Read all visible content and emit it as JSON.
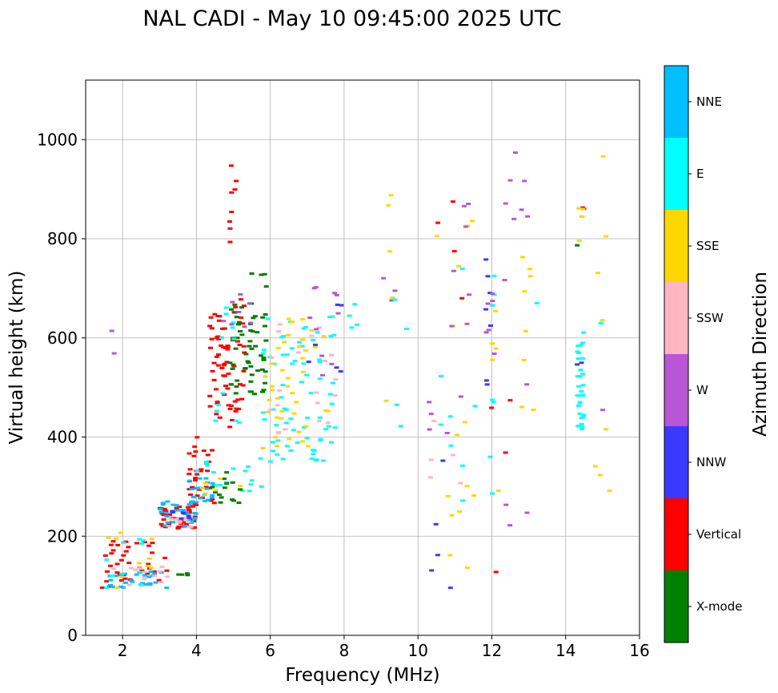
{
  "chart_data": {
    "type": "scatter",
    "title": "NAL CADI - May 10 09:45:00 2025 UTC",
    "xlabel": "Frequency (MHz)",
    "ylabel": "Virtual height (km)",
    "xlim": [
      1,
      16
    ],
    "ylim": [
      0,
      1120
    ],
    "xticks": [
      2,
      4,
      6,
      8,
      10,
      12,
      14,
      16
    ],
    "yticks": [
      0,
      200,
      400,
      600,
      800,
      1000
    ],
    "grid": true,
    "colorbar": {
      "label": "Azimuth Direction",
      "categories": [
        "X-mode",
        "Vertical",
        "NNW",
        "W",
        "SSW",
        "SSE",
        "E",
        "NNE"
      ],
      "colors": [
        "#008000",
        "#ff0000",
        "#3a3aff",
        "#b856d6",
        "#ffb6c1",
        "#ffd700",
        "#00ffff",
        "#00bfff"
      ]
    },
    "clusters": [
      {
        "category": "Vertical",
        "x": [
          1.45,
          3.2
        ],
        "y": [
          95,
          190
        ],
        "n": 40
      },
      {
        "category": "NNE",
        "x": [
          1.45,
          3.2
        ],
        "y": [
          95,
          130
        ],
        "n": 25
      },
      {
        "category": "SSW",
        "x": [
          1.45,
          3.3
        ],
        "y": [
          100,
          140
        ],
        "n": 14
      },
      {
        "category": "SSE",
        "x": [
          1.5,
          3.0
        ],
        "y": [
          90,
          220
        ],
        "n": 10
      },
      {
        "category": "E",
        "x": [
          1.5,
          2.8
        ],
        "y": [
          95,
          205
        ],
        "n": 10
      },
      {
        "category": "X-mode",
        "x": [
          3.5,
          3.8
        ],
        "y": [
          115,
          125
        ],
        "n": 4
      },
      {
        "category": "Vertical",
        "x": [
          3.0,
          4.0
        ],
        "y": [
          215,
          265
        ],
        "n": 45
      },
      {
        "category": "NNE",
        "x": [
          3.0,
          4.0
        ],
        "y": [
          220,
          270
        ],
        "n": 30
      },
      {
        "category": "SSW",
        "x": [
          3.2,
          3.9
        ],
        "y": [
          215,
          240
        ],
        "n": 12
      },
      {
        "category": "NNW",
        "x": [
          3.2,
          3.9
        ],
        "y": [
          230,
          255
        ],
        "n": 6
      },
      {
        "category": "Vertical",
        "x": [
          3.8,
          4.5
        ],
        "y": [
          260,
          400
        ],
        "n": 35
      },
      {
        "category": "NNE",
        "x": [
          3.8,
          4.5
        ],
        "y": [
          265,
          320
        ],
        "n": 22
      },
      {
        "category": "E",
        "x": [
          4.0,
          5.8
        ],
        "y": [
          270,
          360
        ],
        "n": 18
      },
      {
        "category": "X-mode",
        "x": [
          4.3,
          5.2
        ],
        "y": [
          265,
          330
        ],
        "n": 14
      },
      {
        "category": "SSE",
        "x": [
          4.0,
          5.2
        ],
        "y": [
          280,
          320
        ],
        "n": 6
      },
      {
        "category": "Vertical",
        "x": [
          4.3,
          5.3
        ],
        "y": [
          420,
          680
        ],
        "n": 70
      },
      {
        "category": "Vertical",
        "x": [
          4.9,
          5.1
        ],
        "y": [
          760,
          950
        ],
        "n": 8
      },
      {
        "category": "X-mode",
        "x": [
          4.9,
          5.9
        ],
        "y": [
          480,
          680
        ],
        "n": 55
      },
      {
        "category": "X-mode",
        "x": [
          5.5,
          5.9
        ],
        "y": [
          700,
          760
        ],
        "n": 4
      },
      {
        "category": "E",
        "x": [
          4.5,
          5.2
        ],
        "y": [
          420,
          680
        ],
        "n": 12
      },
      {
        "category": "W",
        "x": [
          4.6,
          5.5
        ],
        "y": [
          600,
          690
        ],
        "n": 8
      },
      {
        "category": "E",
        "x": [
          5.8,
          7.8
        ],
        "y": [
          350,
          650
        ],
        "n": 70
      },
      {
        "category": "SSE",
        "x": [
          5.8,
          7.8
        ],
        "y": [
          370,
          640
        ],
        "n": 40
      },
      {
        "category": "SSW",
        "x": [
          6.0,
          7.8
        ],
        "y": [
          380,
          640
        ],
        "n": 20
      },
      {
        "category": "W",
        "x": [
          7.0,
          8.0
        ],
        "y": [
          520,
          715
        ],
        "n": 10
      },
      {
        "category": "NNW",
        "x": [
          7.0,
          8.0
        ],
        "y": [
          530,
          690
        ],
        "n": 6
      },
      {
        "category": "E",
        "x": [
          8.0,
          8.4
        ],
        "y": [
          620,
          670
        ],
        "n": 4
      },
      {
        "category": "SSE",
        "x": [
          9.1,
          9.4
        ],
        "y": [
          265,
          950
        ],
        "n": 5
      },
      {
        "category": "W",
        "x": [
          9.0,
          9.4
        ],
        "y": [
          670,
          740
        ],
        "n": 3
      },
      {
        "category": "E",
        "x": [
          9.3,
          9.9
        ],
        "y": [
          260,
          730
        ],
        "n": 4
      },
      {
        "category": "SSE",
        "x": [
          10.3,
          11.6
        ],
        "y": [
          90,
          935
        ],
        "n": 14
      },
      {
        "category": "W",
        "x": [
          10.3,
          11.5
        ],
        "y": [
          350,
          955
        ],
        "n": 12
      },
      {
        "category": "NNW",
        "x": [
          10.3,
          10.9
        ],
        "y": [
          90,
          410
        ],
        "n": 5
      },
      {
        "category": "E",
        "x": [
          10.6,
          11.7
        ],
        "y": [
          150,
          890
        ],
        "n": 8
      },
      {
        "category": "Vertical",
        "x": [
          10.5,
          11.5
        ],
        "y": [
          470,
          920
        ],
        "n": 4
      },
      {
        "category": "SSW",
        "x": [
          10.2,
          11.5
        ],
        "y": [
          90,
          480
        ],
        "n": 5
      },
      {
        "category": "NNW",
        "x": [
          11.8,
          12.1
        ],
        "y": [
          500,
          760
        ],
        "n": 8
      },
      {
        "category": "E",
        "x": [
          11.9,
          12.1
        ],
        "y": [
          150,
          805
        ],
        "n": 7
      },
      {
        "category": "W",
        "x": [
          11.8,
          12.1
        ],
        "y": [
          510,
          730
        ],
        "n": 6
      },
      {
        "category": "SSE",
        "x": [
          12.0,
          12.4
        ],
        "y": [
          100,
          670
        ],
        "n": 5
      },
      {
        "category": "Vertical",
        "x": [
          11.8,
          12.8
        ],
        "y": [
          90,
          710
        ],
        "n": 4
      },
      {
        "category": "W",
        "x": [
          12.3,
          13.0
        ],
        "y": [
          220,
          1005
        ],
        "n": 12
      },
      {
        "category": "SSE",
        "x": [
          12.8,
          13.3
        ],
        "y": [
          295,
          765
        ],
        "n": 8
      },
      {
        "category": "E",
        "x": [
          13.0,
          13.3
        ],
        "y": [
          670,
          680
        ],
        "n": 1
      },
      {
        "category": "E",
        "x": [
          14.3,
          14.5
        ],
        "y": [
          415,
          620
        ],
        "n": 30
      },
      {
        "category": "NNW",
        "x": [
          14.3,
          14.5
        ],
        "y": [
          540,
          550
        ],
        "n": 2
      },
      {
        "category": "Vertical",
        "x": [
          14.3,
          14.5
        ],
        "y": [
          860,
          870
        ],
        "n": 2
      },
      {
        "category": "SSE",
        "x": [
          14.3,
          14.5
        ],
        "y": [
          785,
          865
        ],
        "n": 5
      },
      {
        "category": "X-mode",
        "x": [
          14.3,
          14.5
        ],
        "y": [
          785,
          790
        ],
        "n": 1
      },
      {
        "category": "SSE",
        "x": [
          14.8,
          15.2
        ],
        "y": [
          245,
          1010
        ],
        "n": 8
      },
      {
        "category": "E",
        "x": [
          14.8,
          15.2
        ],
        "y": [
          625,
          635
        ],
        "n": 1
      },
      {
        "category": "W",
        "x": [
          14.8,
          15.2
        ],
        "y": [
          450,
          455
        ],
        "n": 1
      },
      {
        "category": "W",
        "x": [
          1.7,
          1.8
        ],
        "y": [
          565,
          620
        ],
        "n": 2
      }
    ]
  }
}
